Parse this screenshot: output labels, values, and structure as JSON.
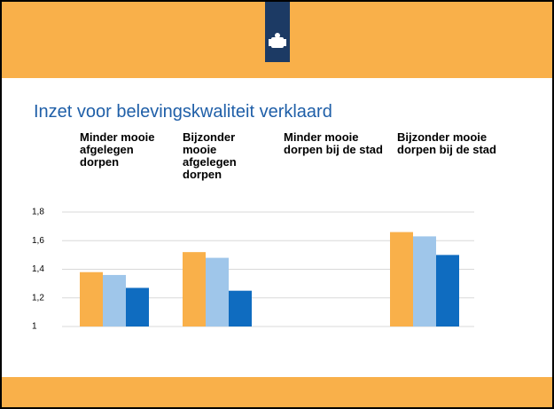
{
  "chart_data": {
    "type": "bar",
    "title": "Inzet voor belevingskwaliteit verklaard",
    "categories": [
      "Minder mooie afgelegen dorpen",
      "Bijzonder mooie afgelegen dorpen",
      "Minder mooie dorpen bij de stad",
      "Bijzonder mooie dorpen bij de stad"
    ],
    "series": [
      {
        "color": "#f9b04a",
        "values": [
          1.38,
          1.52,
          null,
          1.66
        ]
      },
      {
        "color": "#9fc6ea",
        "values": [
          1.36,
          1.48,
          null,
          1.63
        ]
      },
      {
        "color": "#0f6cc0",
        "values": [
          1.27,
          1.25,
          null,
          1.5
        ]
      }
    ],
    "ylim": [
      1,
      1.8
    ],
    "yticks": [
      1,
      {
        "value": 1.2,
        "label": "1,2"
      },
      {
        "value": 1.4,
        "label": "1,4"
      },
      {
        "value": 1.6,
        "label": "1,6"
      },
      {
        "value": 1.8,
        "label": "1,8"
      }
    ],
    "grid": true
  }
}
